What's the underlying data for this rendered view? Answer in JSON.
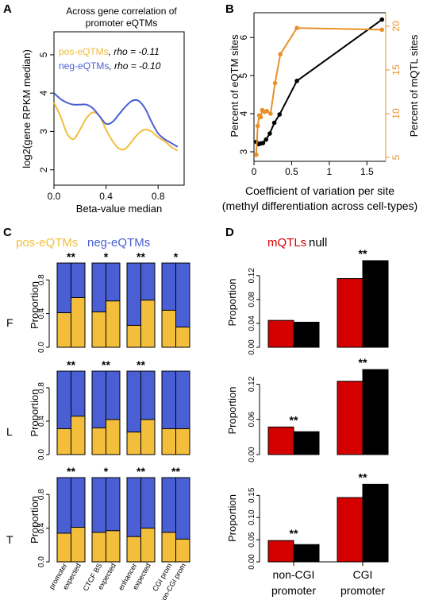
{
  "colors": {
    "pos": "#F2BE3C",
    "neg": "#4A5FD4",
    "mqtl": "#D40000",
    "null": "#000000",
    "orange": "#E8902A",
    "black": "#000000"
  },
  "chart_data": [
    {
      "id": "A",
      "panel_label": "A",
      "type": "line",
      "title": "Across gene correlation of\npromoter eQTMs",
      "xlabel": "Beta-value median",
      "ylabel": "log2(gene RPKM median)",
      "xlim": [
        0,
        1
      ],
      "ylim": [
        1.6,
        5.6
      ],
      "xticks": [
        "0.0",
        "0.4",
        "0.8"
      ],
      "xtick_values": [
        0,
        0.4,
        0.8
      ],
      "yticks": [
        "2",
        "3",
        "4",
        "5"
      ],
      "ytick_values": [
        2,
        3,
        4,
        5
      ],
      "legend": [
        {
          "name": "pos-eQTMs",
          "stat": ", rho = -0.11",
          "color": "#F2BE3C"
        },
        {
          "name": "neg-eQTMs",
          "stat": ", rho = -0.10",
          "color": "#4A5FD4"
        }
      ],
      "series": [
        {
          "name": "pos-eQTMs",
          "color": "#F2BE3C",
          "x": [
            0.0,
            0.05,
            0.1,
            0.15,
            0.2,
            0.25,
            0.3,
            0.35,
            0.4,
            0.45,
            0.5,
            0.55,
            0.6,
            0.65,
            0.7,
            0.75,
            0.8,
            0.85,
            0.9,
            0.95
          ],
          "y": [
            3.75,
            3.4,
            2.95,
            2.8,
            3.05,
            3.35,
            3.5,
            3.4,
            3.05,
            2.75,
            2.55,
            2.55,
            2.75,
            2.95,
            3.05,
            3.0,
            2.85,
            2.75,
            2.6,
            2.5
          ]
        },
        {
          "name": "neg-eQTMs",
          "color": "#4A5FD4",
          "x": [
            0.0,
            0.05,
            0.1,
            0.15,
            0.2,
            0.25,
            0.3,
            0.35,
            0.4,
            0.45,
            0.5,
            0.55,
            0.6,
            0.65,
            0.7,
            0.75,
            0.8,
            0.85,
            0.9,
            0.95
          ],
          "y": [
            4.0,
            3.85,
            3.75,
            3.7,
            3.7,
            3.7,
            3.6,
            3.4,
            3.2,
            3.25,
            3.45,
            3.65,
            3.8,
            3.8,
            3.6,
            3.25,
            2.95,
            2.8,
            2.7,
            2.6
          ]
        }
      ]
    },
    {
      "id": "B",
      "panel_label": "B",
      "type": "line",
      "xlabel": "Coefficient of variation per site",
      "xlabel2": "(methyl differentiation across cell-types)",
      "ylabel": "Percent of eQTM sites",
      "ylabel_right": "Percent of mQTL sites",
      "xlim": [
        0,
        1.75
      ],
      "ylim": [
        2.75,
        6.65
      ],
      "ylim_right": [
        5,
        20
      ],
      "xticks": [
        "0",
        "0.5",
        "1",
        "1.5"
      ],
      "xtick_values": [
        0,
        0.5,
        1,
        1.5
      ],
      "yticks": [
        "3",
        "4",
        "5",
        "6"
      ],
      "ytick_values": [
        3,
        4,
        5,
        6
      ],
      "yticks_right": [
        "5",
        "10",
        "15",
        "20"
      ],
      "ytick_values_right": [
        5,
        10,
        15,
        20
      ],
      "series": [
        {
          "name": "",
          "axis": "left",
          "color": "#000000",
          "x": [
            0.03,
            0.06,
            0.09,
            0.12,
            0.16,
            0.21,
            0.27,
            0.34,
            0.57,
            1.7
          ],
          "y": [
            3.26,
            3.2,
            3.22,
            3.23,
            3.32,
            3.48,
            3.76,
            3.98,
            4.86,
            6.47
          ]
        },
        {
          "name": "",
          "axis": "right",
          "color": "#E8902A",
          "x": [
            0.03,
            0.05,
            0.07,
            0.09,
            0.11,
            0.14,
            0.17,
            0.22,
            0.28,
            0.35,
            0.57,
            1.7
          ],
          "y": [
            5.3,
            8.6,
            9.8,
            9.6,
            10.4,
            10.2,
            10.3,
            10.0,
            13.5,
            16.8,
            19.8,
            19.6
          ]
        }
      ]
    },
    {
      "id": "C",
      "panel_label": "C",
      "type": "bar",
      "stacked": true,
      "legend": [
        {
          "name": "pos-eQTMs",
          "color": "#F2BE3C"
        },
        {
          "name": "neg-eQTMs",
          "color": "#4A5FD4"
        }
      ],
      "ylabel": "Proportion",
      "ylim": [
        0,
        1
      ],
      "yticks": [
        "0.0",
        "0.4",
        "0.8"
      ],
      "ytick_values": [
        0,
        0.4,
        0.8
      ],
      "categories": [
        "promoter",
        "expected",
        "CTCF BS",
        "expected",
        "enhancer",
        "expected",
        "CGI prom",
        "non-CGI prom"
      ],
      "rows": [
        {
          "label": "F",
          "pos_fraction": [
            0.41,
            0.59,
            0.42,
            0.55,
            0.26,
            0.56,
            0.44,
            0.24
          ],
          "significance": [
            "**",
            "*",
            "**",
            "*"
          ]
        },
        {
          "label": "L",
          "pos_fraction": [
            0.31,
            0.46,
            0.32,
            0.42,
            0.27,
            0.42,
            0.31,
            0.31
          ],
          "significance": [
            "**",
            "**",
            "**",
            ""
          ]
        },
        {
          "label": "T",
          "pos_fraction": [
            0.34,
            0.41,
            0.35,
            0.37,
            0.3,
            0.4,
            0.35,
            0.27
          ],
          "significance": [
            "**",
            "*",
            "**",
            "**"
          ]
        }
      ]
    },
    {
      "id": "D",
      "panel_label": "D",
      "type": "bar",
      "legend": [
        {
          "name": "mQTLs",
          "color": "#D40000"
        },
        {
          "name": "null",
          "color": "#000000"
        }
      ],
      "ylabel": "Proportion",
      "categories": [
        "non-CGI\npromoter",
        "CGI\npromoter"
      ],
      "rows": [
        {
          "ylim": [
            0,
            0.145
          ],
          "yticks": [
            "0.00",
            "0.04",
            "0.08",
            "0.12"
          ],
          "ytick_values": [
            0,
            0.04,
            0.08,
            0.12
          ],
          "mqtl": [
            0.045,
            0.115
          ],
          "null": [
            0.042,
            0.145
          ],
          "significance": [
            "",
            "**"
          ]
        },
        {
          "ylim": [
            0,
            0.145
          ],
          "yticks": [
            "0.00",
            "0.06",
            "0.12"
          ],
          "ytick_values": [
            0,
            0.06,
            0.12
          ],
          "mqtl": [
            0.047,
            0.125
          ],
          "null": [
            0.039,
            0.145
          ],
          "significance": [
            "**",
            "**"
          ]
        },
        {
          "ylim": [
            0,
            0.19
          ],
          "yticks": [
            "0.00",
            "0.05",
            "0.10",
            "0.15"
          ],
          "ytick_values": [
            0,
            0.05,
            0.1,
            0.15
          ],
          "mqtl": [
            0.048,
            0.145
          ],
          "null": [
            0.039,
            0.175
          ],
          "significance": [
            "**",
            "**"
          ]
        }
      ]
    }
  ]
}
